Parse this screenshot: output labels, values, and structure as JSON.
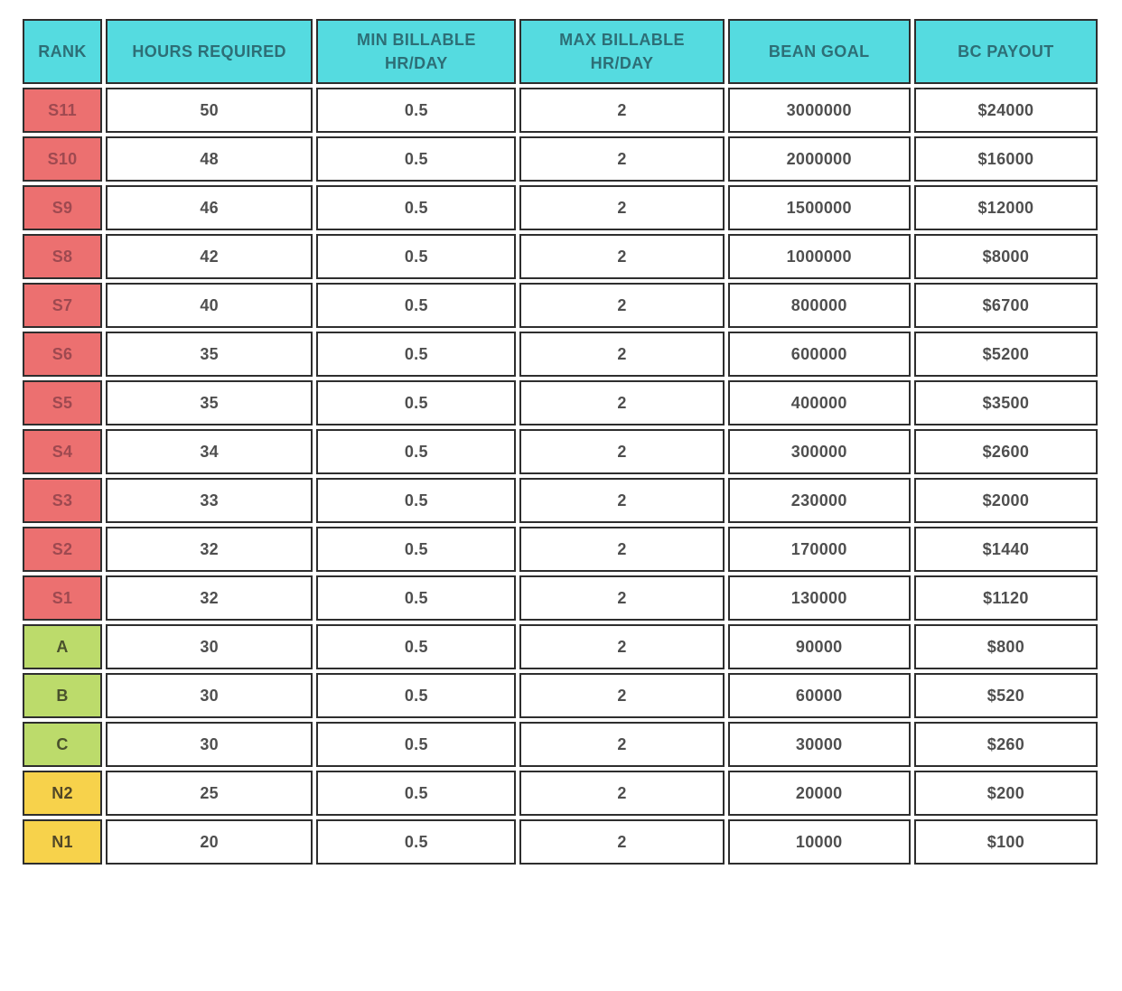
{
  "colors": {
    "header_bg": "#55dbe0",
    "header_text": "#2d6e76",
    "border_color": "#2e2e2e",
    "cell_text": "#4f4f4f",
    "s_rank_bg": "#ec7070",
    "s_rank_text": "#9e4950",
    "abc_rank_bg": "#bcdb6b",
    "abc_rank_text": "#49512c",
    "n_rank_bg": "#f7d24b",
    "n_rank_text": "#514727"
  },
  "chart_data": {
    "type": "table",
    "title": "",
    "columns": [
      "RANK",
      "HOURS REQUIRED",
      "MIN BILLABLE HR/DAY",
      "MAX BILLABLE HR/DAY",
      "BEAN GOAL",
      "BC PAYOUT"
    ],
    "column_labels_display": [
      "RANK",
      "HOURS REQUIRED",
      "MIN BILLABLE\nHR/DAY",
      "MAX BILLABLE\nHR/DAY",
      "BEAN GOAL",
      "BC PAYOUT"
    ],
    "fields": [
      "rank",
      "hours_required",
      "min_billable",
      "max_billable",
      "bean_goal",
      "bc_payout"
    ],
    "rows": [
      {
        "rank": "S11",
        "tier": "s",
        "hours_required": "50",
        "min_billable": "0.5",
        "max_billable": "2",
        "bean_goal": "3000000",
        "bc_payout": "$24000"
      },
      {
        "rank": "S10",
        "tier": "s",
        "hours_required": "48",
        "min_billable": "0.5",
        "max_billable": "2",
        "bean_goal": "2000000",
        "bc_payout": "$16000"
      },
      {
        "rank": "S9",
        "tier": "s",
        "hours_required": "46",
        "min_billable": "0.5",
        "max_billable": "2",
        "bean_goal": "1500000",
        "bc_payout": "$12000"
      },
      {
        "rank": "S8",
        "tier": "s",
        "hours_required": "42",
        "min_billable": "0.5",
        "max_billable": "2",
        "bean_goal": "1000000",
        "bc_payout": "$8000"
      },
      {
        "rank": "S7",
        "tier": "s",
        "hours_required": "40",
        "min_billable": "0.5",
        "max_billable": "2",
        "bean_goal": "800000",
        "bc_payout": "$6700"
      },
      {
        "rank": "S6",
        "tier": "s",
        "hours_required": "35",
        "min_billable": "0.5",
        "max_billable": "2",
        "bean_goal": "600000",
        "bc_payout": "$5200"
      },
      {
        "rank": "S5",
        "tier": "s",
        "hours_required": "35",
        "min_billable": "0.5",
        "max_billable": "2",
        "bean_goal": "400000",
        "bc_payout": "$3500"
      },
      {
        "rank": "S4",
        "tier": "s",
        "hours_required": "34",
        "min_billable": "0.5",
        "max_billable": "2",
        "bean_goal": "300000",
        "bc_payout": "$2600"
      },
      {
        "rank": "S3",
        "tier": "s",
        "hours_required": "33",
        "min_billable": "0.5",
        "max_billable": "2",
        "bean_goal": "230000",
        "bc_payout": "$2000"
      },
      {
        "rank": "S2",
        "tier": "s",
        "hours_required": "32",
        "min_billable": "0.5",
        "max_billable": "2",
        "bean_goal": "170000",
        "bc_payout": "$1440"
      },
      {
        "rank": "S1",
        "tier": "s",
        "hours_required": "32",
        "min_billable": "0.5",
        "max_billable": "2",
        "bean_goal": "130000",
        "bc_payout": "$1120"
      },
      {
        "rank": "A",
        "tier": "abc",
        "hours_required": "30",
        "min_billable": "0.5",
        "max_billable": "2",
        "bean_goal": "90000",
        "bc_payout": "$800"
      },
      {
        "rank": "B",
        "tier": "abc",
        "hours_required": "30",
        "min_billable": "0.5",
        "max_billable": "2",
        "bean_goal": "60000",
        "bc_payout": "$520"
      },
      {
        "rank": "C",
        "tier": "abc",
        "hours_required": "30",
        "min_billable": "0.5",
        "max_billable": "2",
        "bean_goal": "30000",
        "bc_payout": "$260"
      },
      {
        "rank": "N2",
        "tier": "n",
        "hours_required": "25",
        "min_billable": "0.5",
        "max_billable": "2",
        "bean_goal": "20000",
        "bc_payout": "$200"
      },
      {
        "rank": "N1",
        "tier": "n",
        "hours_required": "20",
        "min_billable": "0.5",
        "max_billable": "2",
        "bean_goal": "10000",
        "bc_payout": "$100"
      }
    ]
  }
}
